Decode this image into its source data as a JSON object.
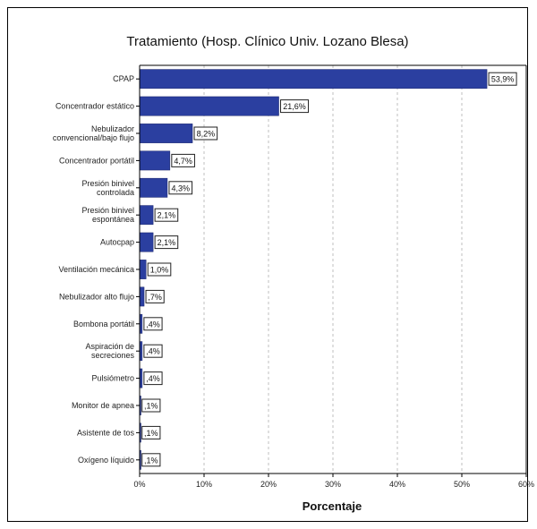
{
  "chart_data": {
    "type": "bar",
    "orientation": "horizontal",
    "title": "Tratamiento (Hosp. Clínico Univ. Lozano Blesa)",
    "xlabel": "Porcentaje",
    "ylabel": "",
    "xlim": [
      0,
      60
    ],
    "ticks": [
      0,
      10,
      20,
      30,
      40,
      50,
      60
    ],
    "tick_labels": [
      "0%",
      "10%",
      "20%",
      "30%",
      "40%",
      "50%",
      "60%"
    ],
    "grid": "vertical-dashed",
    "bar_color": "#2b3fa0",
    "categories": [
      [
        "CPAP"
      ],
      [
        "Concentrador estático"
      ],
      [
        "Nebulizador",
        "convencional/bajo flujo"
      ],
      [
        "Concentrador portátil"
      ],
      [
        "Presión binivel",
        "controlada"
      ],
      [
        "Presión binivel",
        "espontánea"
      ],
      [
        "Autocpap"
      ],
      [
        "Ventilación mecánica"
      ],
      [
        "Nebulizador alto flujo"
      ],
      [
        "Bombona portátil"
      ],
      [
        "Aspiración de",
        "secreciones"
      ],
      [
        "Pulsiómetro"
      ],
      [
        "Monitor de apnea"
      ],
      [
        "Asistente de tos"
      ],
      [
        "Oxígeno líquido"
      ]
    ],
    "values": [
      53.9,
      21.6,
      8.2,
      4.7,
      4.3,
      2.1,
      2.1,
      1.0,
      0.7,
      0.4,
      0.4,
      0.4,
      0.1,
      0.1,
      0.1
    ],
    "data_labels": [
      "53,9%",
      "21,6%",
      "8,2%",
      "4,7%",
      "4,3%",
      "2,1%",
      "2,1%",
      "1,0%",
      ",7%",
      ",4%",
      ",4%",
      ",4%",
      ",1%",
      ",1%",
      ",1%"
    ]
  }
}
